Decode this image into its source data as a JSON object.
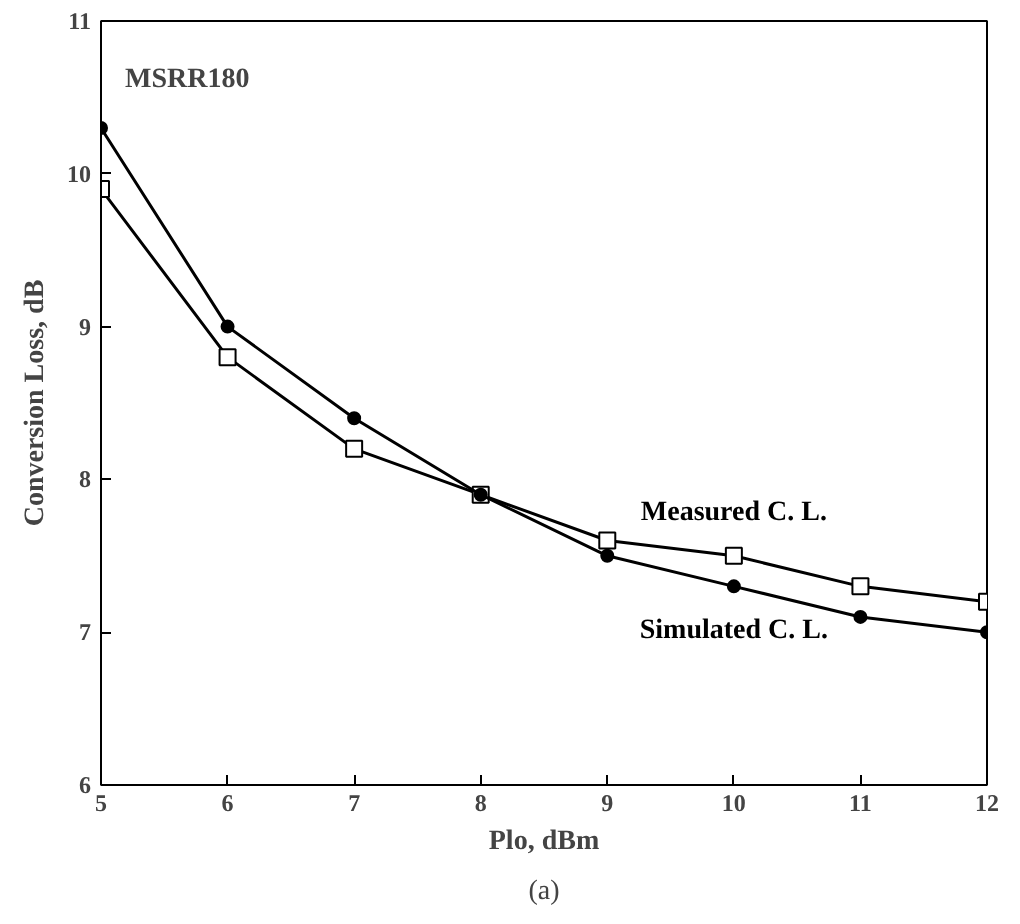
{
  "chart_data": {
    "type": "line",
    "xlabel": "Plo, dBm",
    "ylabel": "Conversion Loss, dB",
    "x": [
      5,
      6,
      7,
      8,
      9,
      10,
      11,
      12
    ],
    "series": [
      {
        "name": "Measured C. L.",
        "color": "#000000",
        "marker": "square",
        "values": [
          9.9,
          8.8,
          8.2,
          7.9,
          7.6,
          7.5,
          7.3,
          7.2
        ]
      },
      {
        "name": "Simulated C. L.",
        "color": "#000000",
        "marker": "circle",
        "values": [
          10.3,
          9.0,
          8.4,
          7.9,
          7.5,
          7.3,
          7.1,
          7.0
        ]
      }
    ],
    "xlim": [
      5,
      12
    ],
    "ylim": [
      6,
      11
    ],
    "xticks": [
      5,
      6,
      7,
      8,
      9,
      10,
      11,
      12
    ],
    "yticks": [
      6,
      7,
      8,
      9,
      10,
      11
    ],
    "grid": false,
    "legend": false,
    "line_style": "solid",
    "annotations": [
      "MSRR180",
      "(a)"
    ]
  }
}
